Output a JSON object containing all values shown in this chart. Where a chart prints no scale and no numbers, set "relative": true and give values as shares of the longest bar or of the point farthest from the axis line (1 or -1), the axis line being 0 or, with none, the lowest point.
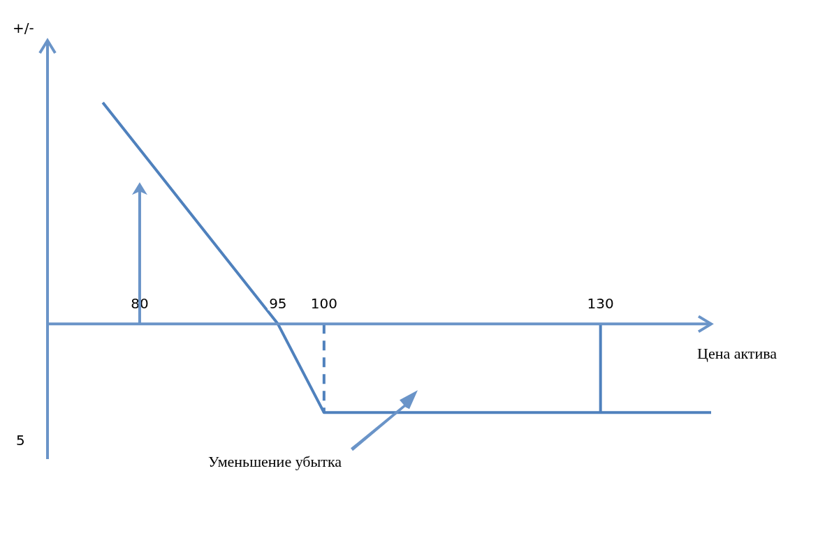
{
  "chart_data": {
    "type": "line",
    "relative": true,
    "xlabel": "Цена актива",
    "ylabel": "+/-",
    "xlim": [
      70,
      142
    ],
    "xticks": [
      80,
      95,
      100,
      130
    ],
    "tick_labels": "x",
    "grid": false,
    "marker": "none",
    "line_style": "solid",
    "annotations": [
      "Уменьшение убытка",
      "5"
    ],
    "series": [
      {
        "x": [
          76,
          95,
          100,
          142
        ],
        "values": [
          1,
          0,
          -0.4,
          -0.4
        ],
        "color": "#4f81bd"
      },
      {
        "x": [
          100,
          100
        ],
        "values": [
          0,
          -0.4
        ],
        "color": "#4f81bd",
        "line_style": "dashed"
      },
      {
        "x": [
          130,
          130
        ],
        "values": [
          0,
          -0.4
        ],
        "color": "#4f81bd"
      }
    ]
  }
}
